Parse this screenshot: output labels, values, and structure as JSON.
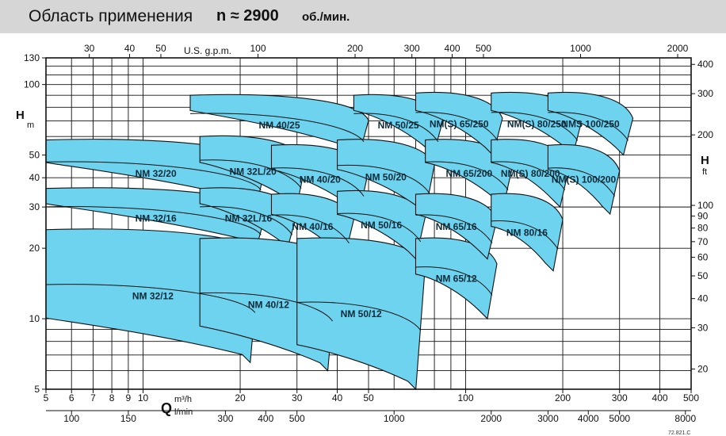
{
  "header": {
    "title": "Область применения",
    "speed": "n ≈ 2900",
    "unit": "об./мин."
  },
  "code": "72.821.C",
  "colors": {
    "fill": "#6dd3ee",
    "stroke": "#111111",
    "header_bg": "#d6d6d6"
  },
  "chart_data": {
    "type": "area",
    "title": "Область применения n ≈ 2900 об./мин.",
    "xscale": "log",
    "yscale": "log",
    "x_axis_bottom": {
      "unit_symbol": "Q",
      "unit_top": "m³/h",
      "unit_bottom": "l/min",
      "ticks_m3h": [
        "5",
        "6",
        "7",
        "8",
        "9",
        "10",
        "20",
        "30",
        "40",
        "50",
        "100",
        "200",
        "300",
        "400",
        "500"
      ],
      "ticks_lmin": [
        "100",
        "150",
        "300",
        "400",
        "500",
        "1000",
        "2000",
        "3000",
        "4000",
        "5000",
        "8000"
      ],
      "xlim_m3h": [
        5,
        500
      ]
    },
    "x_axis_top": {
      "unit": "U.S. g.p.m.",
      "ticks": [
        "30",
        "40",
        "50",
        "100",
        "200",
        "300",
        "400",
        "500",
        "1000",
        "2000"
      ]
    },
    "y_axis_left": {
      "unit_symbol": "H",
      "unit": "m",
      "ticks": [
        "5",
        "10",
        "20",
        "30",
        "40",
        "50",
        "100",
        "130"
      ],
      "ylim_m": [
        5,
        130
      ]
    },
    "y_axis_right": {
      "unit_symbol": "H",
      "unit": "ft",
      "ticks": [
        "20",
        "30",
        "40",
        "50",
        "60",
        "70",
        "80",
        "90",
        "100",
        "200",
        "300",
        "400"
      ]
    },
    "regions": [
      {
        "name": "NM 32/12",
        "q_range": [
          5,
          23
        ],
        "h_range": [
          6.5,
          24
        ]
      },
      {
        "name": "NM 32/16",
        "q_range": [
          5,
          24
        ],
        "h_range": [
          20,
          36
        ]
      },
      {
        "name": "NM 32/20",
        "q_range": [
          5,
          24
        ],
        "h_range": [
          30,
          58
        ]
      },
      {
        "name": "NM 32L/16",
        "q_range": [
          15,
          30
        ],
        "h_range": [
          20,
          36
        ]
      },
      {
        "name": "NM 32L/20",
        "q_range": [
          15,
          32
        ],
        "h_range": [
          30,
          60
        ]
      },
      {
        "name": "NM 40/12",
        "q_range": [
          15,
          40
        ],
        "h_range": [
          6,
          22
        ]
      },
      {
        "name": "NM 40/16",
        "q_range": [
          25,
          45
        ],
        "h_range": [
          18,
          34
        ]
      },
      {
        "name": "NM 40/20",
        "q_range": [
          25,
          50
        ],
        "h_range": [
          28,
          55
        ]
      },
      {
        "name": "NM 40/25",
        "q_range": [
          14,
          50
        ],
        "h_range": [
          50,
          90
        ]
      },
      {
        "name": "NM 50/12",
        "q_range": [
          30,
          75
        ],
        "h_range": [
          5,
          22
        ]
      },
      {
        "name": "NM 50/16",
        "q_range": [
          40,
          75
        ],
        "h_range": [
          18,
          35
        ]
      },
      {
        "name": "NM 50/20",
        "q_range": [
          40,
          80
        ],
        "h_range": [
          28,
          58
        ]
      },
      {
        "name": "NM 50/25",
        "q_range": [
          45,
          85
        ],
        "h_range": [
          50,
          90
        ]
      },
      {
        "name": "NM 65/12",
        "q_range": [
          70,
          125
        ],
        "h_range": [
          10,
          22
        ]
      },
      {
        "name": "NM 65/16",
        "q_range": [
          70,
          125
        ],
        "h_range": [
          18,
          34
        ]
      },
      {
        "name": "NM 65/200",
        "q_range": [
          75,
          140
        ],
        "h_range": [
          30,
          58
        ]
      },
      {
        "name": "NM(S) 65/250",
        "q_range": [
          70,
          130
        ],
        "h_range": [
          50,
          92
        ]
      },
      {
        "name": "NM 80/16",
        "q_range": [
          120,
          200
        ],
        "h_range": [
          16,
          34
        ]
      },
      {
        "name": "NM(S) 80/200",
        "q_range": [
          120,
          210
        ],
        "h_range": [
          30,
          58
        ]
      },
      {
        "name": "NM(S) 80/250",
        "q_range": [
          120,
          230
        ],
        "h_range": [
          50,
          92
        ]
      },
      {
        "name": "NM(S) 100/200",
        "q_range": [
          180,
          300
        ],
        "h_range": [
          28,
          55
        ]
      },
      {
        "name": "NMS 100/250",
        "q_range": [
          180,
          330
        ],
        "h_range": [
          50,
          92
        ]
      }
    ]
  }
}
